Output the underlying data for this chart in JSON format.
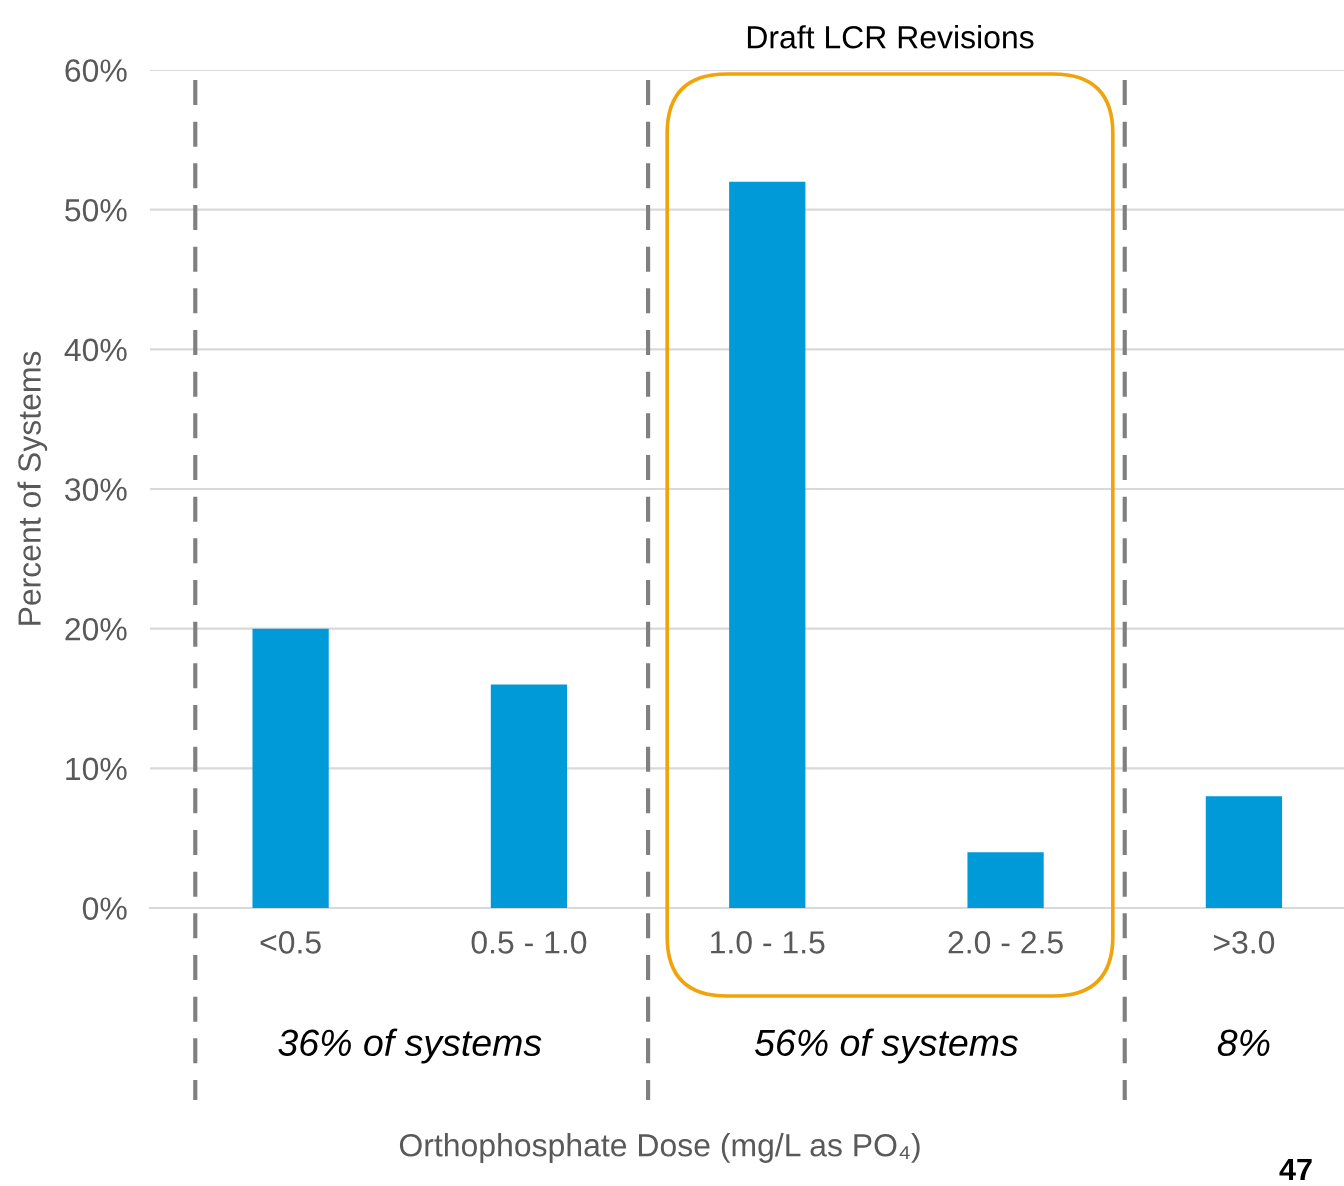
{
  "chart_data": {
    "type": "bar",
    "ylabel": "Percent of Systems",
    "categories": [
      "<0.5",
      "0.5 - 1.0",
      "1.0 - 1.5",
      "2.0 - 2.5",
      ">3.0"
    ],
    "values": [
      20,
      16,
      52,
      4,
      8
    ],
    "color": "#009ad9",
    "ylim": [
      0,
      60
    ],
    "yticks": [
      {
        "value": 0,
        "label": "0%"
      },
      {
        "value": 10,
        "label": "10%"
      },
      {
        "value": 20,
        "label": "20%"
      },
      {
        "value": 30,
        "label": "30%"
      },
      {
        "value": 40,
        "label": "40%"
      },
      {
        "value": 50,
        "label": "50%"
      },
      {
        "value": 60,
        "label": "60%"
      }
    ],
    "grid": "y",
    "annotations": [
      "Draft LCR Revisions",
      "36% of systems",
      "56% of systems",
      "8%",
      "Orthophosphate Dose (mg/L as PO₄)",
      "47"
    ]
  }
}
